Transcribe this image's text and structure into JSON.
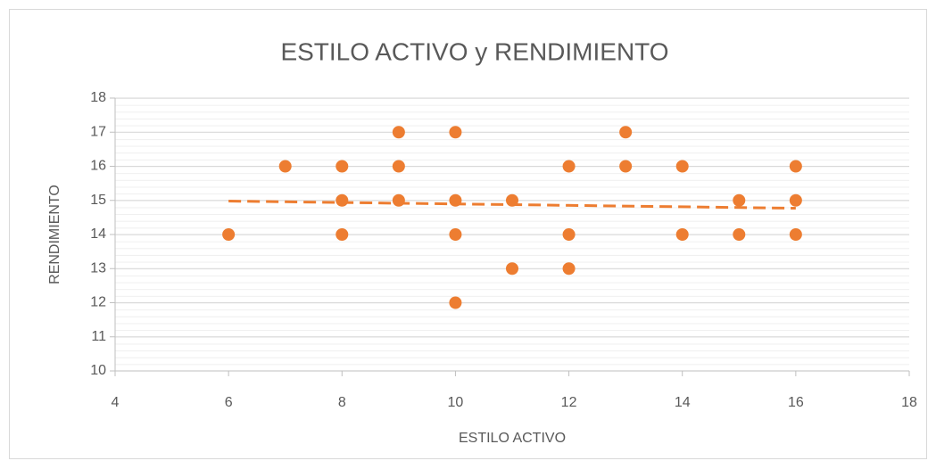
{
  "chart_data": {
    "type": "scatter",
    "title": "ESTILO ACTIVO  y RENDIMIENTO",
    "x_label": "ESTILO ACTIVO",
    "y_label": "RENDIMIENTO",
    "series": [
      {
        "name": "RENDIMIENTO",
        "color": "#ed7d31",
        "x": [
          6,
          7,
          8,
          8,
          8,
          9,
          9,
          9,
          10,
          10,
          10,
          10,
          11,
          11,
          12,
          12,
          12,
          13,
          13,
          14,
          14,
          15,
          15,
          16,
          16,
          16
        ],
        "values": [
          14,
          16,
          16,
          15,
          14,
          17,
          16,
          15,
          17,
          15,
          14,
          12,
          15,
          13,
          16,
          14,
          13,
          17,
          16,
          16,
          14,
          15,
          14,
          16,
          15,
          14
        ]
      }
    ],
    "trendline": {
      "x": [
        6,
        16
      ],
      "values": [
        14.98,
        14.77
      ],
      "color": "#ed7d31",
      "dashed": true
    },
    "xlim": [
      4,
      18
    ],
    "xticks": [
      4,
      6,
      8,
      10,
      12,
      14,
      16,
      18
    ],
    "ylim": [
      10,
      18
    ],
    "yticks": [
      10,
      11,
      12,
      13,
      14,
      15,
      16,
      17,
      18
    ],
    "grid": true
  }
}
